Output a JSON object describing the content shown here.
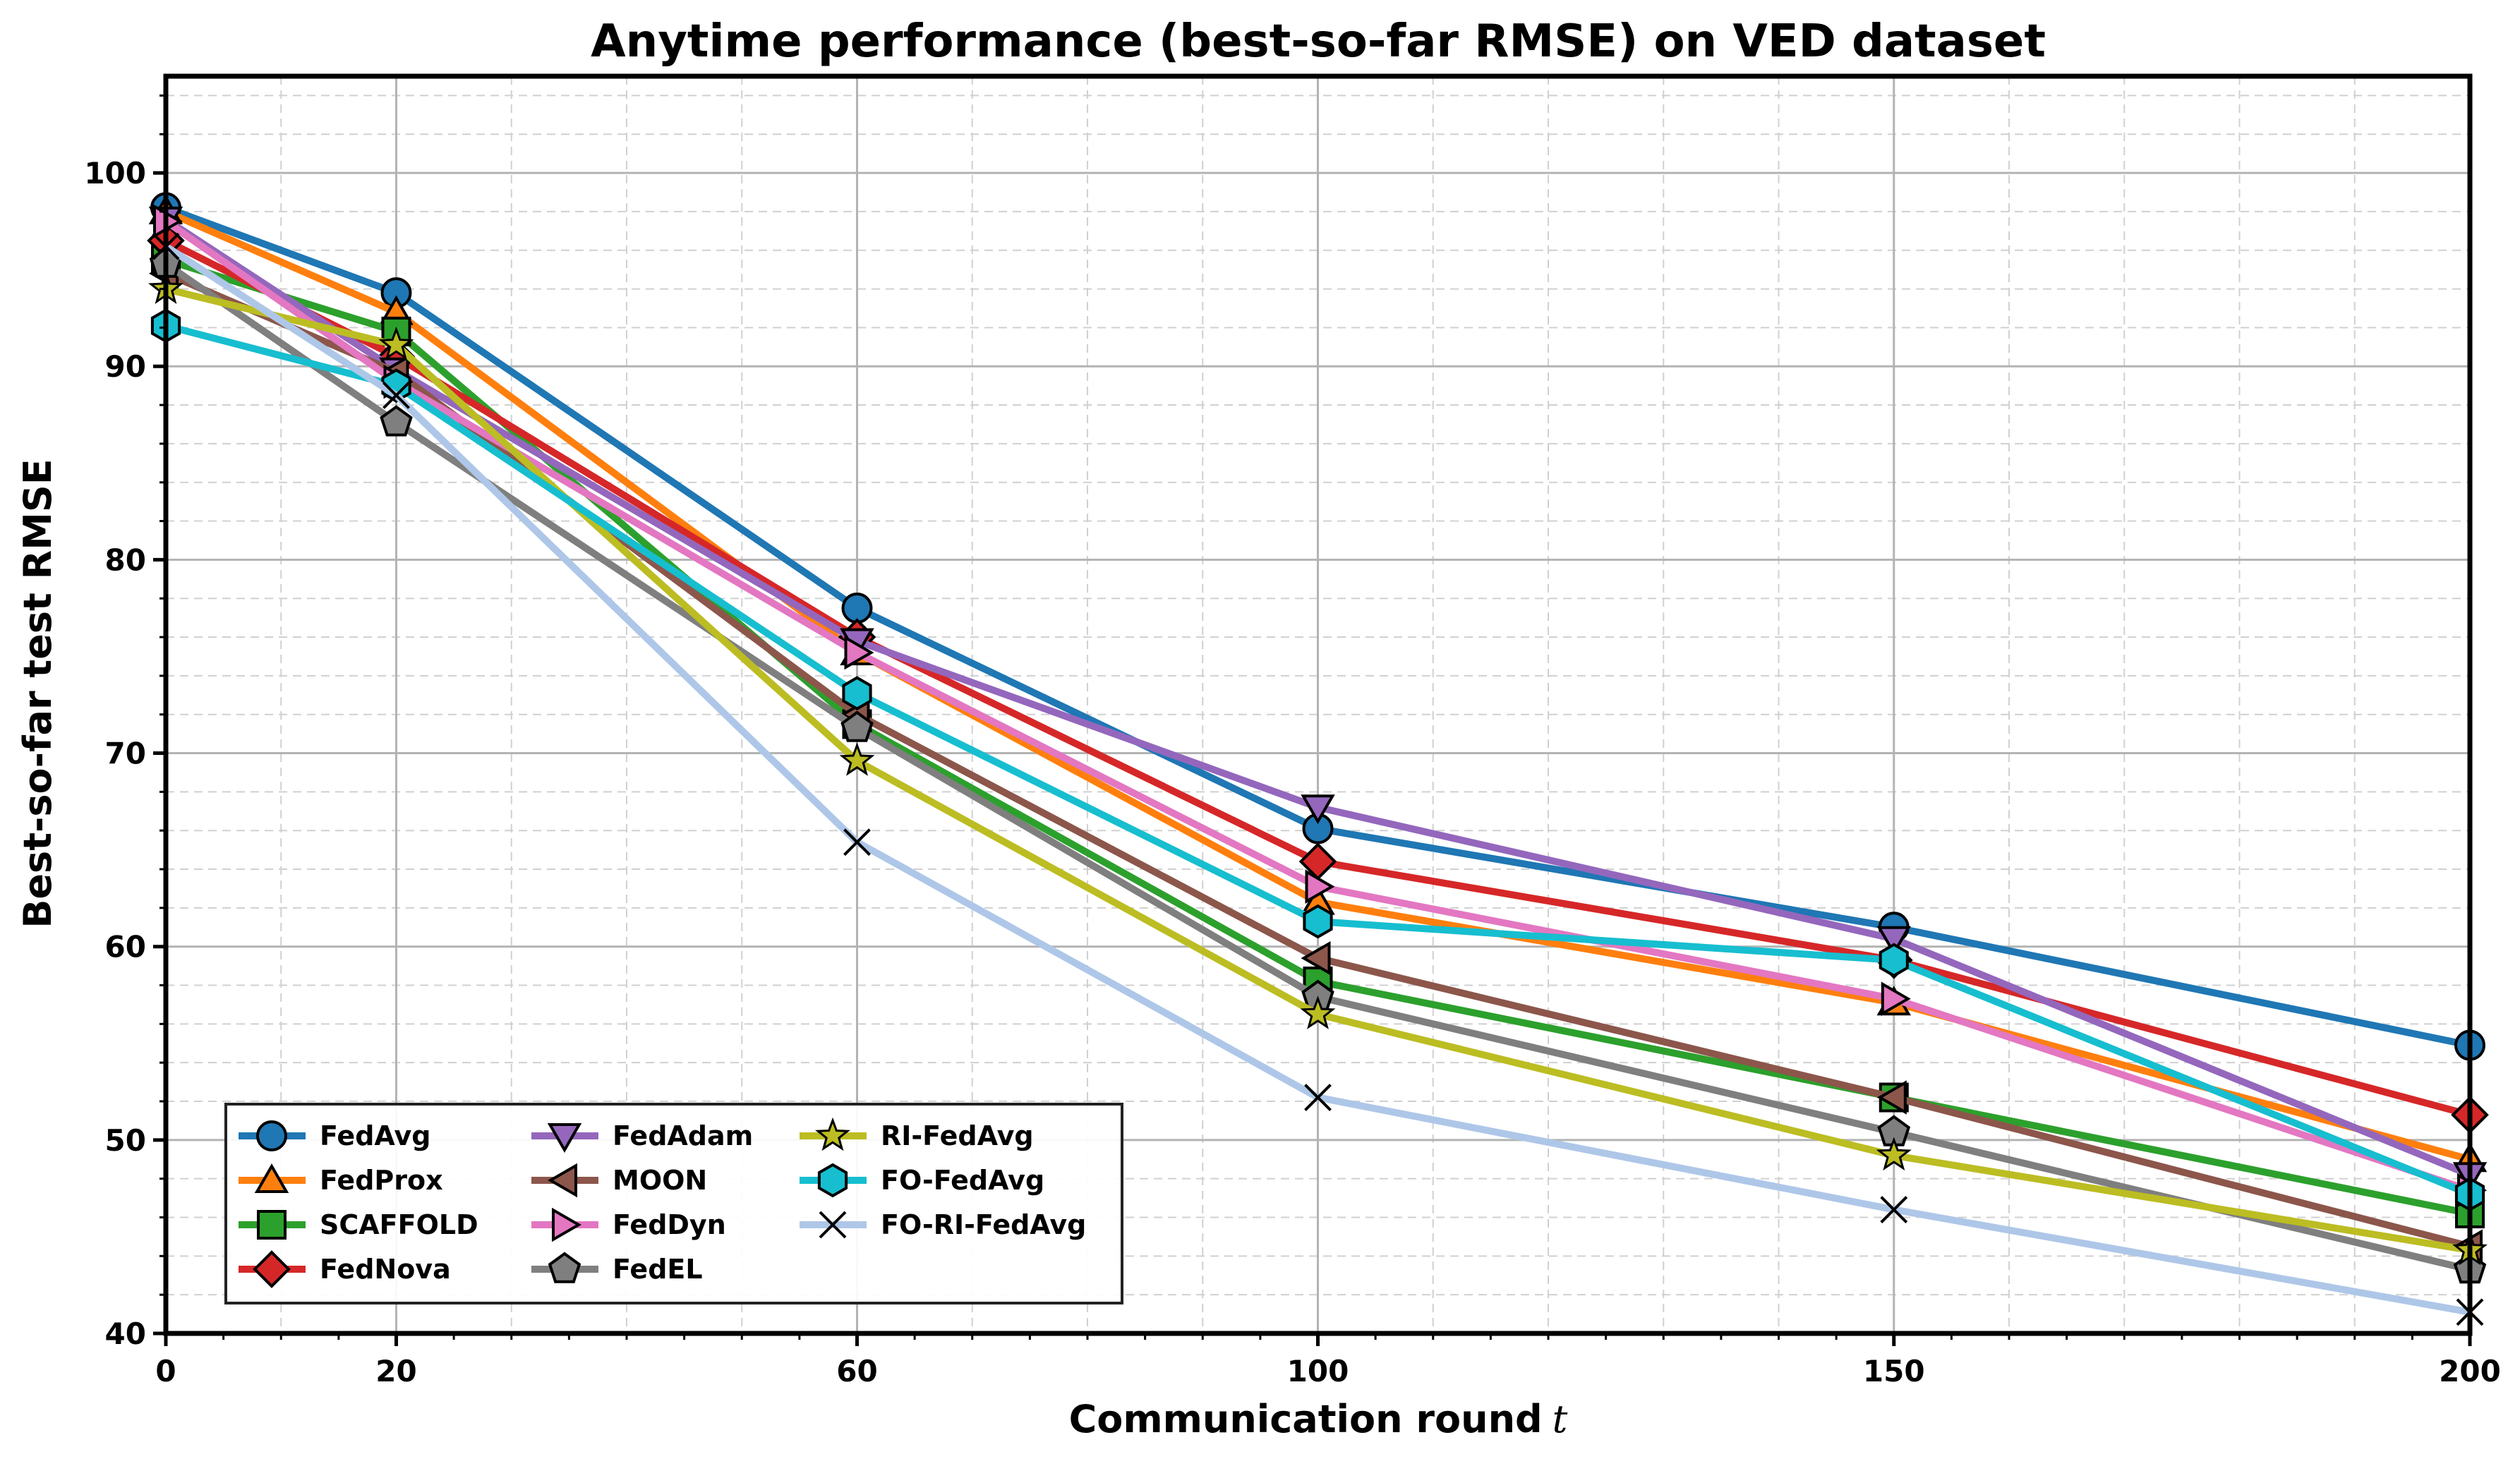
{
  "chart_data": {
    "type": "line",
    "title": "Anytime performance (best-so-far RMSE) on VED dataset",
    "xlabel": "Communication round",
    "xlabel_var": "t",
    "ylabel": "Best-so-far test RMSE",
    "xlim": [
      0,
      200
    ],
    "ylim": [
      40,
      105
    ],
    "xticks": [
      0,
      20,
      60,
      100,
      150,
      200
    ],
    "yticks": [
      40,
      50,
      60,
      70,
      80,
      90,
      100
    ],
    "grid": true,
    "legend_position": "lower-left",
    "x": [
      0,
      20,
      60,
      100,
      150,
      200
    ],
    "series": [
      {
        "name": "FedAvg",
        "color": "#1f77b4",
        "marker": "circle",
        "values": [
          98.2,
          93.8,
          77.5,
          66.1,
          61.0,
          54.9
        ]
      },
      {
        "name": "FedProx",
        "color": "#ff7f0e",
        "marker": "triangle-up",
        "values": [
          98.0,
          92.8,
          75.2,
          62.3,
          57.1,
          49.0
        ]
      },
      {
        "name": "SCAFFOLD",
        "color": "#2ca02c",
        "marker": "square",
        "values": [
          95.5,
          91.8,
          71.5,
          58.2,
          52.2,
          46.2
        ]
      },
      {
        "name": "FedNova",
        "color": "#d62728",
        "marker": "diamond",
        "values": [
          96.5,
          90.5,
          76.0,
          64.4,
          59.3,
          51.3
        ]
      },
      {
        "name": "FedAdam",
        "color": "#9467bd",
        "marker": "triangle-down",
        "values": [
          97.6,
          89.8,
          75.8,
          67.2,
          60.4,
          48.2
        ]
      },
      {
        "name": "MOON",
        "color": "#8c564b",
        "marker": "triangle-left",
        "values": [
          94.8,
          89.7,
          72.0,
          59.4,
          52.2,
          44.5
        ]
      },
      {
        "name": "FedDyn",
        "color": "#e377c2",
        "marker": "triangle-right",
        "values": [
          97.5,
          89.2,
          75.2,
          63.1,
          57.3,
          47.4
        ]
      },
      {
        "name": "FedEL",
        "color": "#7f7f7f",
        "marker": "pentagon",
        "values": [
          95.3,
          87.1,
          71.3,
          57.4,
          50.4,
          43.3
        ]
      },
      {
        "name": "RI-FedAvg",
        "color": "#bcbd22",
        "marker": "star",
        "values": [
          94.0,
          91.1,
          69.6,
          56.5,
          49.2,
          44.3
        ]
      },
      {
        "name": "FO-FedAvg",
        "color": "#17becf",
        "marker": "hexagon",
        "values": [
          92.1,
          89.0,
          73.1,
          61.3,
          59.3,
          47.2
        ]
      },
      {
        "name": "FO-RI-FedAvg",
        "color": "#aec7e8",
        "marker": "x",
        "values": [
          96.2,
          88.5,
          65.4,
          52.2,
          46.4,
          41.1
        ]
      }
    ]
  }
}
